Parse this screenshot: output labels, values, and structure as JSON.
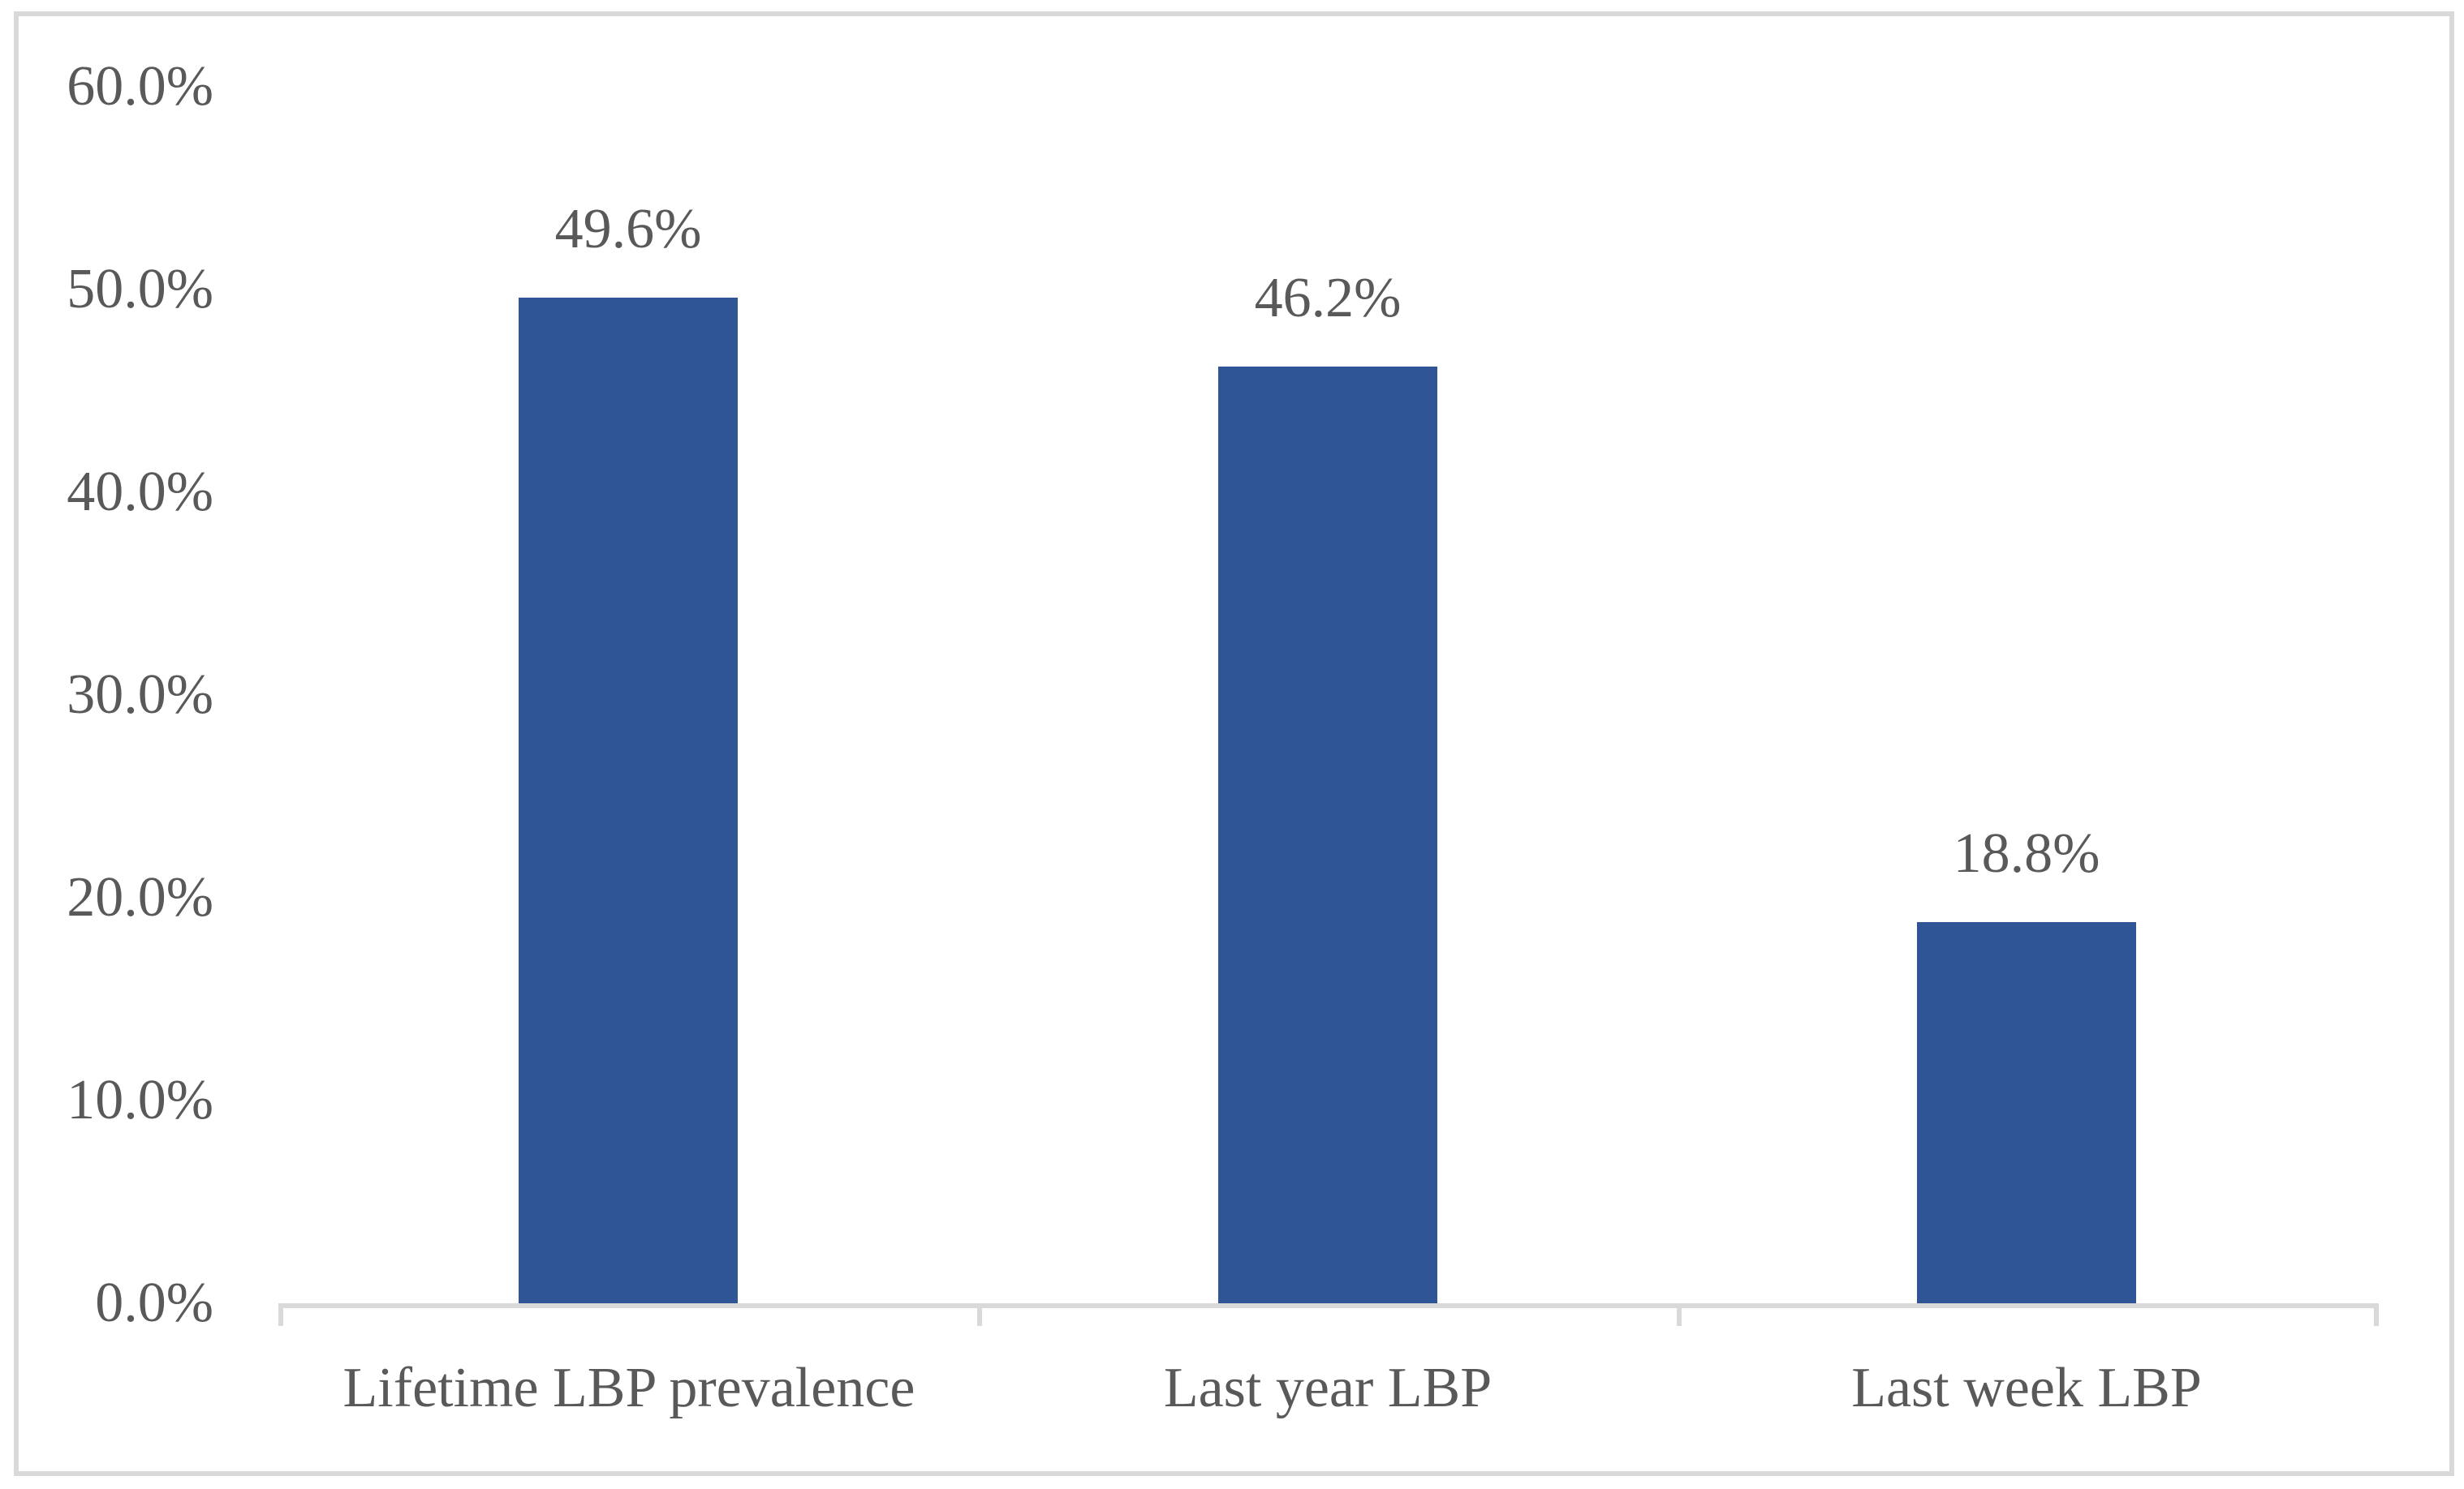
{
  "figure": {
    "background": "#FFFFFF",
    "frame_color": "#D9D9D9"
  },
  "chart_data": {
    "type": "bar",
    "title": "",
    "xlabel": "",
    "ylabel": "",
    "categories": [
      "Lifetime LBP prevalence",
      "Last year LBP",
      "Last week LBP"
    ],
    "values": [
      49.6,
      46.2,
      18.8
    ],
    "data_labels": [
      "49.6%",
      "46.2%",
      "18.8%"
    ],
    "y_ticks": [
      "60.0%",
      "50.0%",
      "40.0%",
      "30.0%",
      "20.0%",
      "10.0%",
      "0.0%"
    ],
    "ylim": [
      0,
      60
    ],
    "y_tick_interval": 10,
    "grid": false,
    "legend": false,
    "bar_color": "#2F5597",
    "axis_color": "#D9D9D9",
    "label_color": "#595959"
  }
}
